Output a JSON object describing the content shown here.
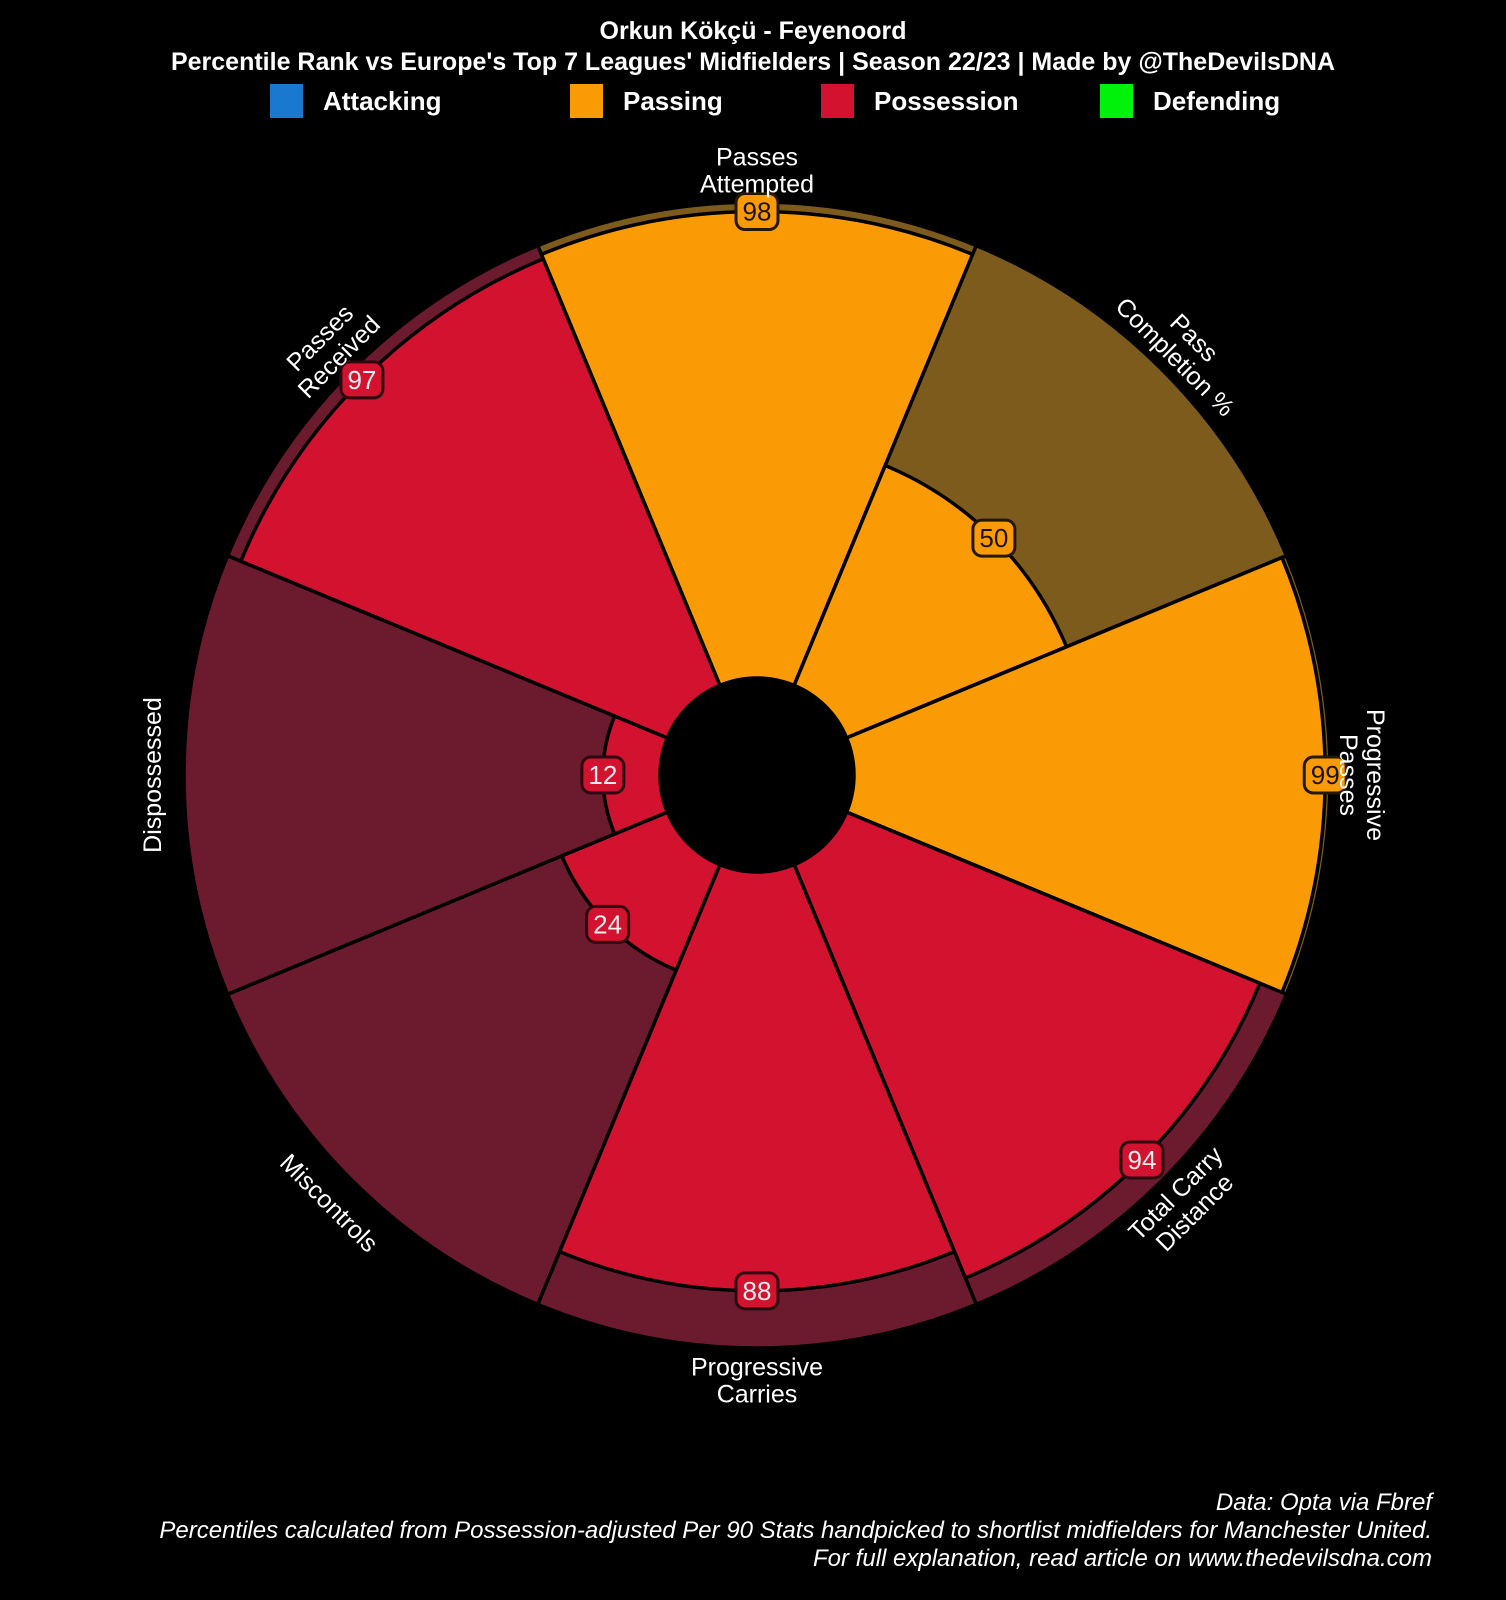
{
  "chart_data": {
    "type": "pizza",
    "title": "Orkun Kökçü - Feyenoord",
    "subtitle": "Percentile Rank vs Europe's Top 7 Leagues' Midfielders | Season 22/23 | Made by @TheDevilsDNA",
    "legend": [
      {
        "label": "Attacking",
        "color": "#1A78CF"
      },
      {
        "label": "Passing",
        "color": "#FA9A04"
      },
      {
        "label": "Possession",
        "color": "#D2122E"
      },
      {
        "label": "Defending",
        "color": "#00F10A"
      }
    ],
    "scale": {
      "min": 0,
      "max": 100
    },
    "slice_span_deg": 45,
    "start_angle_deg": -22.5,
    "categories": {
      "Attacking": {
        "color": "#1A78CF",
        "track": "#0E3A64",
        "badge_text": "#111111",
        "badge_border": "#0A1F33"
      },
      "Passing": {
        "color": "#FA9A04",
        "track": "#7D5B1C",
        "badge_text": "#1D1302",
        "badge_border": "#241802"
      },
      "Possession": {
        "color": "#D2122E",
        "track": "#6C1B2F",
        "badge_text": "#F3EDED",
        "badge_border": "#2E0810"
      },
      "Defending": {
        "color": "#00F10A",
        "track": "#0B5E06",
        "badge_text": "#111111",
        "badge_border": "#053003"
      }
    },
    "slices": [
      {
        "label": "Passes Attempted",
        "lines": [
          "Passes",
          "Attempted"
        ],
        "value": 98,
        "category": "Passing",
        "label_rotation": 0
      },
      {
        "label": "Pass Completion %",
        "lines": [
          "Pass",
          "Completion %"
        ],
        "value": 50,
        "category": "Passing",
        "label_rotation": 45
      },
      {
        "label": "Progressive Passes",
        "lines": [
          "Progressive",
          "Passes"
        ],
        "value": 99,
        "category": "Passing",
        "label_rotation": 90
      },
      {
        "label": "Total Carry Distance",
        "lines": [
          "Total Carry",
          "Distance"
        ],
        "value": 94,
        "category": "Possession",
        "label_rotation": -45
      },
      {
        "label": "Progressive Carries",
        "lines": [
          "Progressive",
          "Carries"
        ],
        "value": 88,
        "category": "Possession",
        "label_rotation": 0
      },
      {
        "label": "Miscontrols",
        "lines": [
          "Miscontrols"
        ],
        "value": 24,
        "category": "Possession",
        "label_rotation": 45
      },
      {
        "label": "Dispossessed",
        "lines": [
          "Dispossessed"
        ],
        "value": 12,
        "category": "Possession",
        "label_rotation": -90
      },
      {
        "label": "Passes Received",
        "lines": [
          "Passes",
          "Received"
        ],
        "value": 97,
        "category": "Possession",
        "label_rotation": -45
      }
    ],
    "source_lines": [
      "Data: Opta via Fbref",
      "Percentiles calculated from Possession-adjusted Per 90 Stats handpicked to shortlist midfielders for Manchester United.",
      "For full explanation, read article on www.thedevilsdna.com"
    ]
  }
}
